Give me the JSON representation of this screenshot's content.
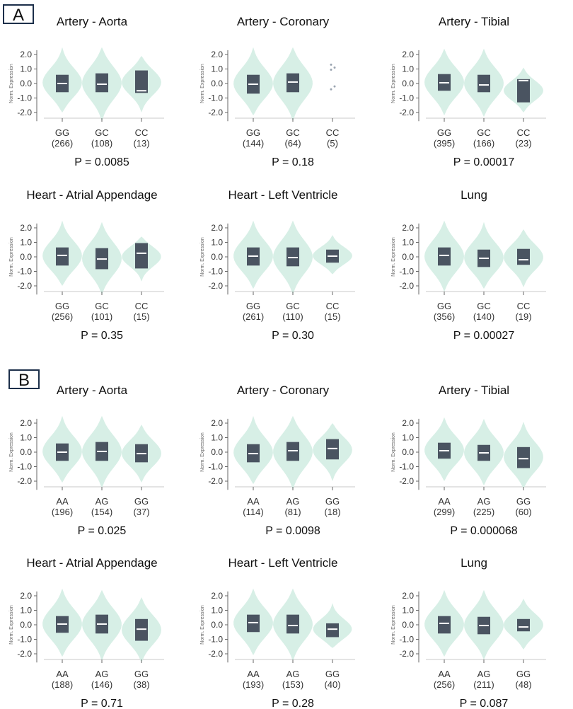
{
  "sections": [
    {
      "label": "A"
    },
    {
      "label": "B"
    }
  ],
  "ylabel": "Norm. Expression",
  "y_ticks": [
    "2.0",
    "1.0",
    "0.0",
    "-1.0",
    "-2.0"
  ],
  "colors": {
    "violin": "#d7efe6",
    "box": "#4a5461",
    "median": "#ffffff",
    "text": "#111111",
    "axis": "#666666"
  },
  "chart_data": [
    {
      "type": "violin",
      "section": "A",
      "title": "Artery - Aorta",
      "p_value": "P = 0.0085",
      "ylim": [
        -2.6,
        2.4
      ],
      "groups": [
        {
          "genotype": "GG",
          "n": "(266)",
          "q1": -0.6,
          "median": 0.0,
          "q3": 0.6,
          "min": -2.0,
          "max": 2.5
        },
        {
          "genotype": "GC",
          "n": "(108)",
          "q1": -0.6,
          "median": -0.05,
          "q3": 0.7,
          "min": -2.6,
          "max": 2.5
        },
        {
          "genotype": "CC",
          "n": "(13)",
          "q1": -0.65,
          "median": -0.5,
          "q3": 0.9,
          "min": -2.0,
          "max": 1.9
        }
      ]
    },
    {
      "type": "violin",
      "section": "A",
      "title": "Artery - Coronary",
      "p_value": "P = 0.18",
      "ylim": [
        -2.6,
        2.4
      ],
      "groups": [
        {
          "genotype": "GG",
          "n": "(144)",
          "q1": -0.7,
          "median": -0.05,
          "q3": 0.6,
          "min": -2.2,
          "max": 2.5
        },
        {
          "genotype": "GC",
          "n": "(64)",
          "q1": -0.6,
          "median": 0.1,
          "q3": 0.7,
          "min": -2.6,
          "max": 2.5
        },
        {
          "genotype": "CC",
          "n": "(5)",
          "points": [
            1.3,
            1.1,
            0.95,
            -0.2,
            -0.4
          ]
        }
      ]
    },
    {
      "type": "violin",
      "section": "A",
      "title": "Artery - Tibial",
      "p_value": "P = 0.00017",
      "ylim": [
        -2.6,
        2.4
      ],
      "groups": [
        {
          "genotype": "GG",
          "n": "(395)",
          "q1": -0.5,
          "median": 0.05,
          "q3": 0.65,
          "min": -2.2,
          "max": 2.4
        },
        {
          "genotype": "GC",
          "n": "(166)",
          "q1": -0.6,
          "median": -0.1,
          "q3": 0.6,
          "min": -2.3,
          "max": 2.4
        },
        {
          "genotype": "CC",
          "n": "(23)",
          "q1": -1.3,
          "median": 0.2,
          "q3": 0.3,
          "min": -2.0,
          "max": 1.1
        }
      ]
    },
    {
      "type": "violin",
      "section": "A",
      "title": "Heart - Atrial Appendage",
      "p_value": "P = 0.35",
      "ylim": [
        -2.6,
        2.4
      ],
      "groups": [
        {
          "genotype": "GG",
          "n": "(256)",
          "q1": -0.6,
          "median": 0.1,
          "q3": 0.65,
          "min": -2.0,
          "max": 2.5
        },
        {
          "genotype": "GC",
          "n": "(101)",
          "q1": -0.85,
          "median": -0.15,
          "q3": 0.6,
          "min": -2.6,
          "max": 2.4
        },
        {
          "genotype": "CC",
          "n": "(15)",
          "q1": -0.8,
          "median": 0.25,
          "q3": 0.95,
          "min": -1.7,
          "max": 1.4
        }
      ]
    },
    {
      "type": "violin",
      "section": "A",
      "title": "Heart - Left Ventricle",
      "p_value": "P = 0.30",
      "ylim": [
        -2.6,
        2.4
      ],
      "groups": [
        {
          "genotype": "GG",
          "n": "(261)",
          "q1": -0.6,
          "median": 0.05,
          "q3": 0.65,
          "min": -2.2,
          "max": 2.5
        },
        {
          "genotype": "GC",
          "n": "(110)",
          "q1": -0.65,
          "median": -0.05,
          "q3": 0.65,
          "min": -2.6,
          "max": 2.5
        },
        {
          "genotype": "CC",
          "n": "(15)",
          "q1": -0.4,
          "median": 0.05,
          "q3": 0.5,
          "min": -1.2,
          "max": 1.5
        }
      ]
    },
    {
      "type": "violin",
      "section": "A",
      "title": "Lung",
      "p_value": "P = 0.00027",
      "ylim": [
        -2.6,
        2.4
      ],
      "groups": [
        {
          "genotype": "GG",
          "n": "(356)",
          "q1": -0.6,
          "median": 0.1,
          "q3": 0.65,
          "min": -2.4,
          "max": 2.5
        },
        {
          "genotype": "GC",
          "n": "(140)",
          "q1": -0.7,
          "median": -0.1,
          "q3": 0.5,
          "min": -2.2,
          "max": 2.4
        },
        {
          "genotype": "CC",
          "n": "(19)",
          "q1": -0.55,
          "median": -0.2,
          "q3": 0.55,
          "min": -2.1,
          "max": 1.9
        }
      ]
    },
    {
      "type": "violin",
      "section": "B",
      "title": "Artery - Aorta",
      "p_value": "P = 0.025",
      "ylim": [
        -2.6,
        2.4
      ],
      "groups": [
        {
          "genotype": "AA",
          "n": "(196)",
          "q1": -0.6,
          "median": 0.0,
          "q3": 0.6,
          "min": -2.1,
          "max": 2.5
        },
        {
          "genotype": "AG",
          "n": "(154)",
          "q1": -0.6,
          "median": 0.05,
          "q3": 0.7,
          "min": -2.5,
          "max": 2.5
        },
        {
          "genotype": "GG",
          "n": "(37)",
          "q1": -0.7,
          "median": -0.1,
          "q3": 0.55,
          "min": -2.1,
          "max": 1.9
        }
      ]
    },
    {
      "type": "violin",
      "section": "B",
      "title": "Artery - Coronary",
      "p_value": "P = 0.0098",
      "ylim": [
        -2.6,
        2.4
      ],
      "groups": [
        {
          "genotype": "AA",
          "n": "(114)",
          "q1": -0.7,
          "median": -0.1,
          "q3": 0.55,
          "min": -2.2,
          "max": 2.5
        },
        {
          "genotype": "AG",
          "n": "(81)",
          "q1": -0.6,
          "median": 0.1,
          "q3": 0.7,
          "min": -2.6,
          "max": 2.5
        },
        {
          "genotype": "GG",
          "n": "(18)",
          "q1": -0.5,
          "median": 0.25,
          "q3": 0.9,
          "min": -2.0,
          "max": 2.0
        }
      ]
    },
    {
      "type": "violin",
      "section": "B",
      "title": "Artery - Tibial",
      "p_value": "P = 0.000068",
      "ylim": [
        -2.6,
        2.4
      ],
      "groups": [
        {
          "genotype": "AA",
          "n": "(299)",
          "q1": -0.45,
          "median": 0.1,
          "q3": 0.65,
          "min": -2.0,
          "max": 2.4
        },
        {
          "genotype": "AG",
          "n": "(225)",
          "q1": -0.6,
          "median": -0.05,
          "q3": 0.5,
          "min": -2.3,
          "max": 2.3
        },
        {
          "genotype": "GG",
          "n": "(60)",
          "q1": -1.1,
          "median": -0.45,
          "q3": 0.35,
          "min": -2.5,
          "max": 2.1
        }
      ]
    },
    {
      "type": "violin",
      "section": "B",
      "title": "Heart - Atrial Appendage",
      "p_value": "P = 0.71",
      "ylim": [
        -2.6,
        2.4
      ],
      "groups": [
        {
          "genotype": "AA",
          "n": "(188)",
          "q1": -0.55,
          "median": 0.05,
          "q3": 0.6,
          "min": -2.2,
          "max": 2.5
        },
        {
          "genotype": "AG",
          "n": "(146)",
          "q1": -0.6,
          "median": 0.05,
          "q3": 0.7,
          "min": -2.5,
          "max": 2.4
        },
        {
          "genotype": "GG",
          "n": "(38)",
          "q1": -1.1,
          "median": -0.3,
          "q3": 0.4,
          "min": -2.6,
          "max": 1.9
        }
      ]
    },
    {
      "type": "violin",
      "section": "B",
      "title": "Heart - Left Ventricle",
      "p_value": "P = 0.28",
      "ylim": [
        -2.6,
        2.4
      ],
      "groups": [
        {
          "genotype": "AA",
          "n": "(193)",
          "q1": -0.5,
          "median": 0.15,
          "q3": 0.7,
          "min": -2.1,
          "max": 2.5
        },
        {
          "genotype": "AG",
          "n": "(153)",
          "q1": -0.6,
          "median": -0.05,
          "q3": 0.7,
          "min": -2.5,
          "max": 2.5
        },
        {
          "genotype": "GG",
          "n": "(40)",
          "q1": -0.85,
          "median": -0.3,
          "q3": 0.1,
          "min": -1.6,
          "max": 1.5
        }
      ]
    },
    {
      "type": "violin",
      "section": "B",
      "title": "Lung",
      "p_value": "P = 0.087",
      "ylim": [
        -2.6,
        2.4
      ],
      "groups": [
        {
          "genotype": "AA",
          "n": "(256)",
          "q1": -0.6,
          "median": 0.1,
          "q3": 0.6,
          "min": -2.2,
          "max": 2.4
        },
        {
          "genotype": "AG",
          "n": "(211)",
          "q1": -0.65,
          "median": -0.05,
          "q3": 0.55,
          "min": -2.4,
          "max": 2.4
        },
        {
          "genotype": "GG",
          "n": "(48)",
          "q1": -0.45,
          "median": -0.15,
          "q3": 0.4,
          "min": -1.7,
          "max": 1.8
        }
      ]
    }
  ]
}
